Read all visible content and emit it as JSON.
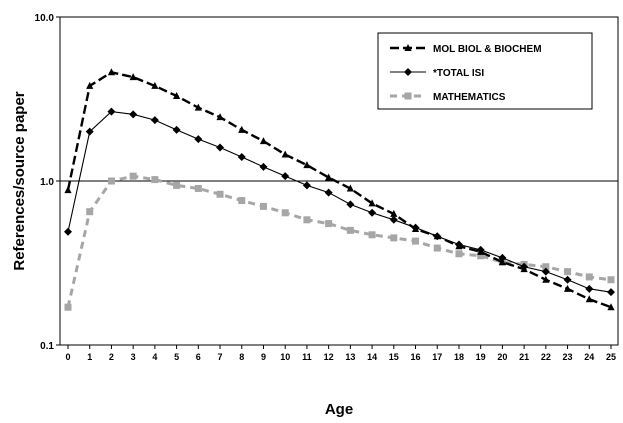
{
  "chart_data": {
    "type": "line",
    "xlabel": "Age",
    "ylabel": "References/source paper",
    "yscale": "log",
    "ylim": [
      0.1,
      10.0
    ],
    "yticks": [
      "0.1",
      "1.0",
      "10.0"
    ],
    "x": [
      0,
      1,
      2,
      3,
      4,
      5,
      6,
      7,
      8,
      9,
      10,
      11,
      12,
      13,
      14,
      15,
      16,
      17,
      18,
      19,
      20,
      21,
      22,
      23,
      24,
      25
    ],
    "legend_position": "top-right",
    "series": [
      {
        "name": "MOL BIOL & BIOCHEM",
        "color": "#000000",
        "marker": "triangle",
        "style": "dashed-bold",
        "values": [
          0.88,
          3.8,
          4.6,
          4.3,
          3.8,
          3.3,
          2.8,
          2.45,
          2.05,
          1.75,
          1.45,
          1.25,
          1.05,
          0.9,
          0.73,
          0.63,
          0.51,
          0.46,
          0.4,
          0.37,
          0.32,
          0.29,
          0.25,
          0.22,
          0.19,
          0.17
        ]
      },
      {
        "name": "*TOTAL ISI",
        "color": "#000000",
        "marker": "diamond",
        "style": "solid",
        "values": [
          0.49,
          2.0,
          2.65,
          2.55,
          2.35,
          2.05,
          1.8,
          1.6,
          1.4,
          1.22,
          1.07,
          0.94,
          0.85,
          0.72,
          0.64,
          0.58,
          0.52,
          0.46,
          0.41,
          0.38,
          0.34,
          0.3,
          0.28,
          0.25,
          0.22,
          0.21
        ]
      },
      {
        "name": "MATHEMATICS",
        "color": "#a6a6a6",
        "marker": "square",
        "style": "dashed",
        "values": [
          0.17,
          0.65,
          1.0,
          1.07,
          1.02,
          0.94,
          0.9,
          0.83,
          0.76,
          0.7,
          0.64,
          0.58,
          0.55,
          0.5,
          0.47,
          0.45,
          0.43,
          0.39,
          0.36,
          0.35,
          0.32,
          0.31,
          0.3,
          0.28,
          0.26,
          0.25
        ]
      }
    ]
  }
}
